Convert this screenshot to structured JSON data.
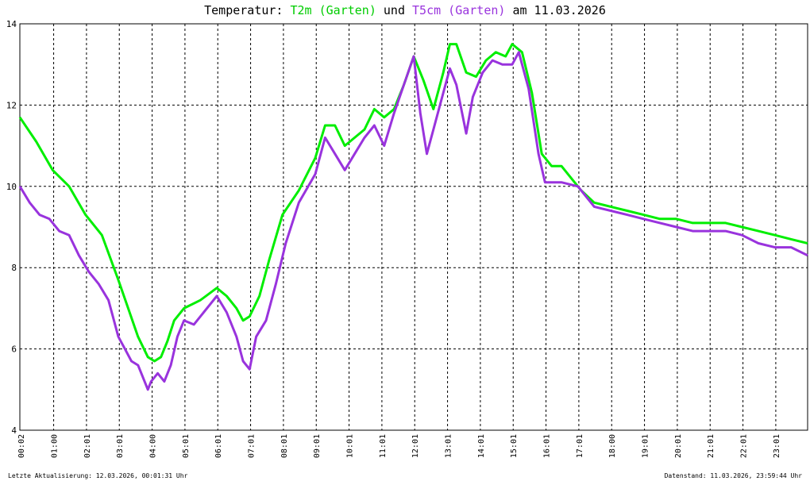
{
  "title": {
    "prefix": "Temperatur: ",
    "series1": "T2m (Garten)",
    "middle": " und ",
    "series2": "T5cm (Garten)",
    "suffix": " am 11.03.2026"
  },
  "footer": {
    "left": "Letzte Aktualisierung: 12.03.2026, 00:01:31 Uhr",
    "right": "Datenstand: 11.03.2026, 23:59:44 Uhr"
  },
  "colors": {
    "t2m": "#00ee00",
    "t5cm": "#9933dd",
    "grid": "#000000",
    "background": "#ffffff"
  },
  "chart_data": {
    "type": "line",
    "title": "Temperatur: T2m (Garten) und T5cm (Garten) am 11.03.2026",
    "xlabel": "",
    "ylabel": "",
    "ylim": [
      4,
      14
    ],
    "xlim": [
      0,
      24
    ],
    "grid": true,
    "y_ticks": [
      "4",
      "6",
      "8",
      "10",
      "12",
      "14"
    ],
    "x_ticks": [
      "00:02",
      "01:00",
      "02:01",
      "03:01",
      "04:00",
      "05:01",
      "06:01",
      "07:01",
      "08:01",
      "09:01",
      "10:01",
      "11:01",
      "12:01",
      "13:01",
      "14:01",
      "15:01",
      "16:01",
      "17:01",
      "18:00",
      "19:01",
      "20:01",
      "21:01",
      "22:01",
      "23:01"
    ],
    "series": [
      {
        "name": "T2m (Garten)",
        "x": [
          0,
          0.5,
          1,
          1.5,
          2,
          2.5,
          3,
          3.3,
          3.6,
          3.9,
          4.1,
          4.3,
          4.5,
          4.7,
          5,
          5.5,
          6,
          6.3,
          6.6,
          6.8,
          7,
          7.3,
          7.6,
          8,
          8.5,
          9,
          9.3,
          9.6,
          9.9,
          10.2,
          10.5,
          10.8,
          11.1,
          11.4,
          11.7,
          12,
          12.3,
          12.6,
          12.9,
          13.1,
          13.3,
          13.6,
          13.9,
          14.2,
          14.5,
          14.8,
          15.0,
          15.3,
          15.6,
          15.9,
          16.2,
          16.5,
          16.8,
          17.1,
          17.5,
          18,
          18.5,
          19,
          19.5,
          20,
          20.5,
          21,
          21.5,
          22,
          22.5,
          23,
          23.5,
          24
        ],
        "values": [
          11.7,
          11.1,
          10.4,
          10.0,
          9.3,
          8.8,
          7.7,
          7.0,
          6.3,
          5.8,
          5.7,
          5.8,
          6.2,
          6.7,
          7.0,
          7.2,
          7.5,
          7.3,
          7.0,
          6.7,
          6.8,
          7.3,
          8.2,
          9.3,
          9.9,
          10.7,
          11.5,
          11.5,
          11.0,
          11.2,
          11.4,
          11.9,
          11.7,
          11.9,
          12.5,
          13.2,
          12.6,
          11.9,
          12.8,
          13.5,
          13.5,
          12.8,
          12.7,
          13.1,
          13.3,
          13.2,
          13.5,
          13.3,
          12.3,
          10.8,
          10.5,
          10.5,
          10.2,
          9.9,
          9.6,
          9.5,
          9.4,
          9.3,
          9.2,
          9.2,
          9.1,
          9.1,
          9.1,
          9.0,
          8.9,
          8.8,
          8.7,
          8.6
        ]
      },
      {
        "name": "T5cm (Garten)",
        "x": [
          0,
          0.3,
          0.6,
          0.9,
          1.2,
          1.5,
          1.8,
          2.1,
          2.4,
          2.7,
          3.0,
          3.2,
          3.4,
          3.6,
          3.9,
          4.0,
          4.2,
          4.4,
          4.6,
          4.8,
          5.0,
          5.3,
          5.6,
          6.0,
          6.3,
          6.6,
          6.8,
          7.0,
          7.2,
          7.5,
          7.8,
          8.1,
          8.5,
          9.0,
          9.3,
          9.6,
          9.9,
          10.2,
          10.5,
          10.8,
          11.1,
          11.4,
          11.7,
          12.0,
          12.2,
          12.4,
          12.6,
          12.9,
          13.1,
          13.3,
          13.6,
          13.8,
          14.1,
          14.4,
          14.7,
          15.0,
          15.2,
          15.5,
          15.8,
          16.0,
          16.5,
          17.0,
          17.5,
          18,
          18.5,
          19,
          19.5,
          20,
          20.5,
          21,
          21.5,
          22,
          22.5,
          23,
          23.5,
          24
        ],
        "values": [
          10.0,
          9.6,
          9.3,
          9.2,
          8.9,
          8.8,
          8.3,
          7.9,
          7.6,
          7.2,
          6.3,
          6.0,
          5.7,
          5.6,
          5.0,
          5.2,
          5.4,
          5.2,
          5.6,
          6.3,
          6.7,
          6.6,
          6.9,
          7.3,
          6.9,
          6.3,
          5.7,
          5.5,
          6.3,
          6.7,
          7.6,
          8.6,
          9.6,
          10.3,
          11.2,
          10.8,
          10.4,
          10.8,
          11.2,
          11.5,
          11.0,
          11.8,
          12.5,
          13.2,
          11.8,
          10.8,
          11.4,
          12.3,
          12.9,
          12.5,
          11.3,
          12.2,
          12.8,
          13.1,
          13.0,
          13.0,
          13.3,
          12.4,
          10.8,
          10.1,
          10.1,
          10.0,
          9.5,
          9.4,
          9.3,
          9.2,
          9.1,
          9.0,
          8.9,
          8.9,
          8.9,
          8.8,
          8.6,
          8.5,
          8.5,
          8.3
        ]
      }
    ]
  }
}
